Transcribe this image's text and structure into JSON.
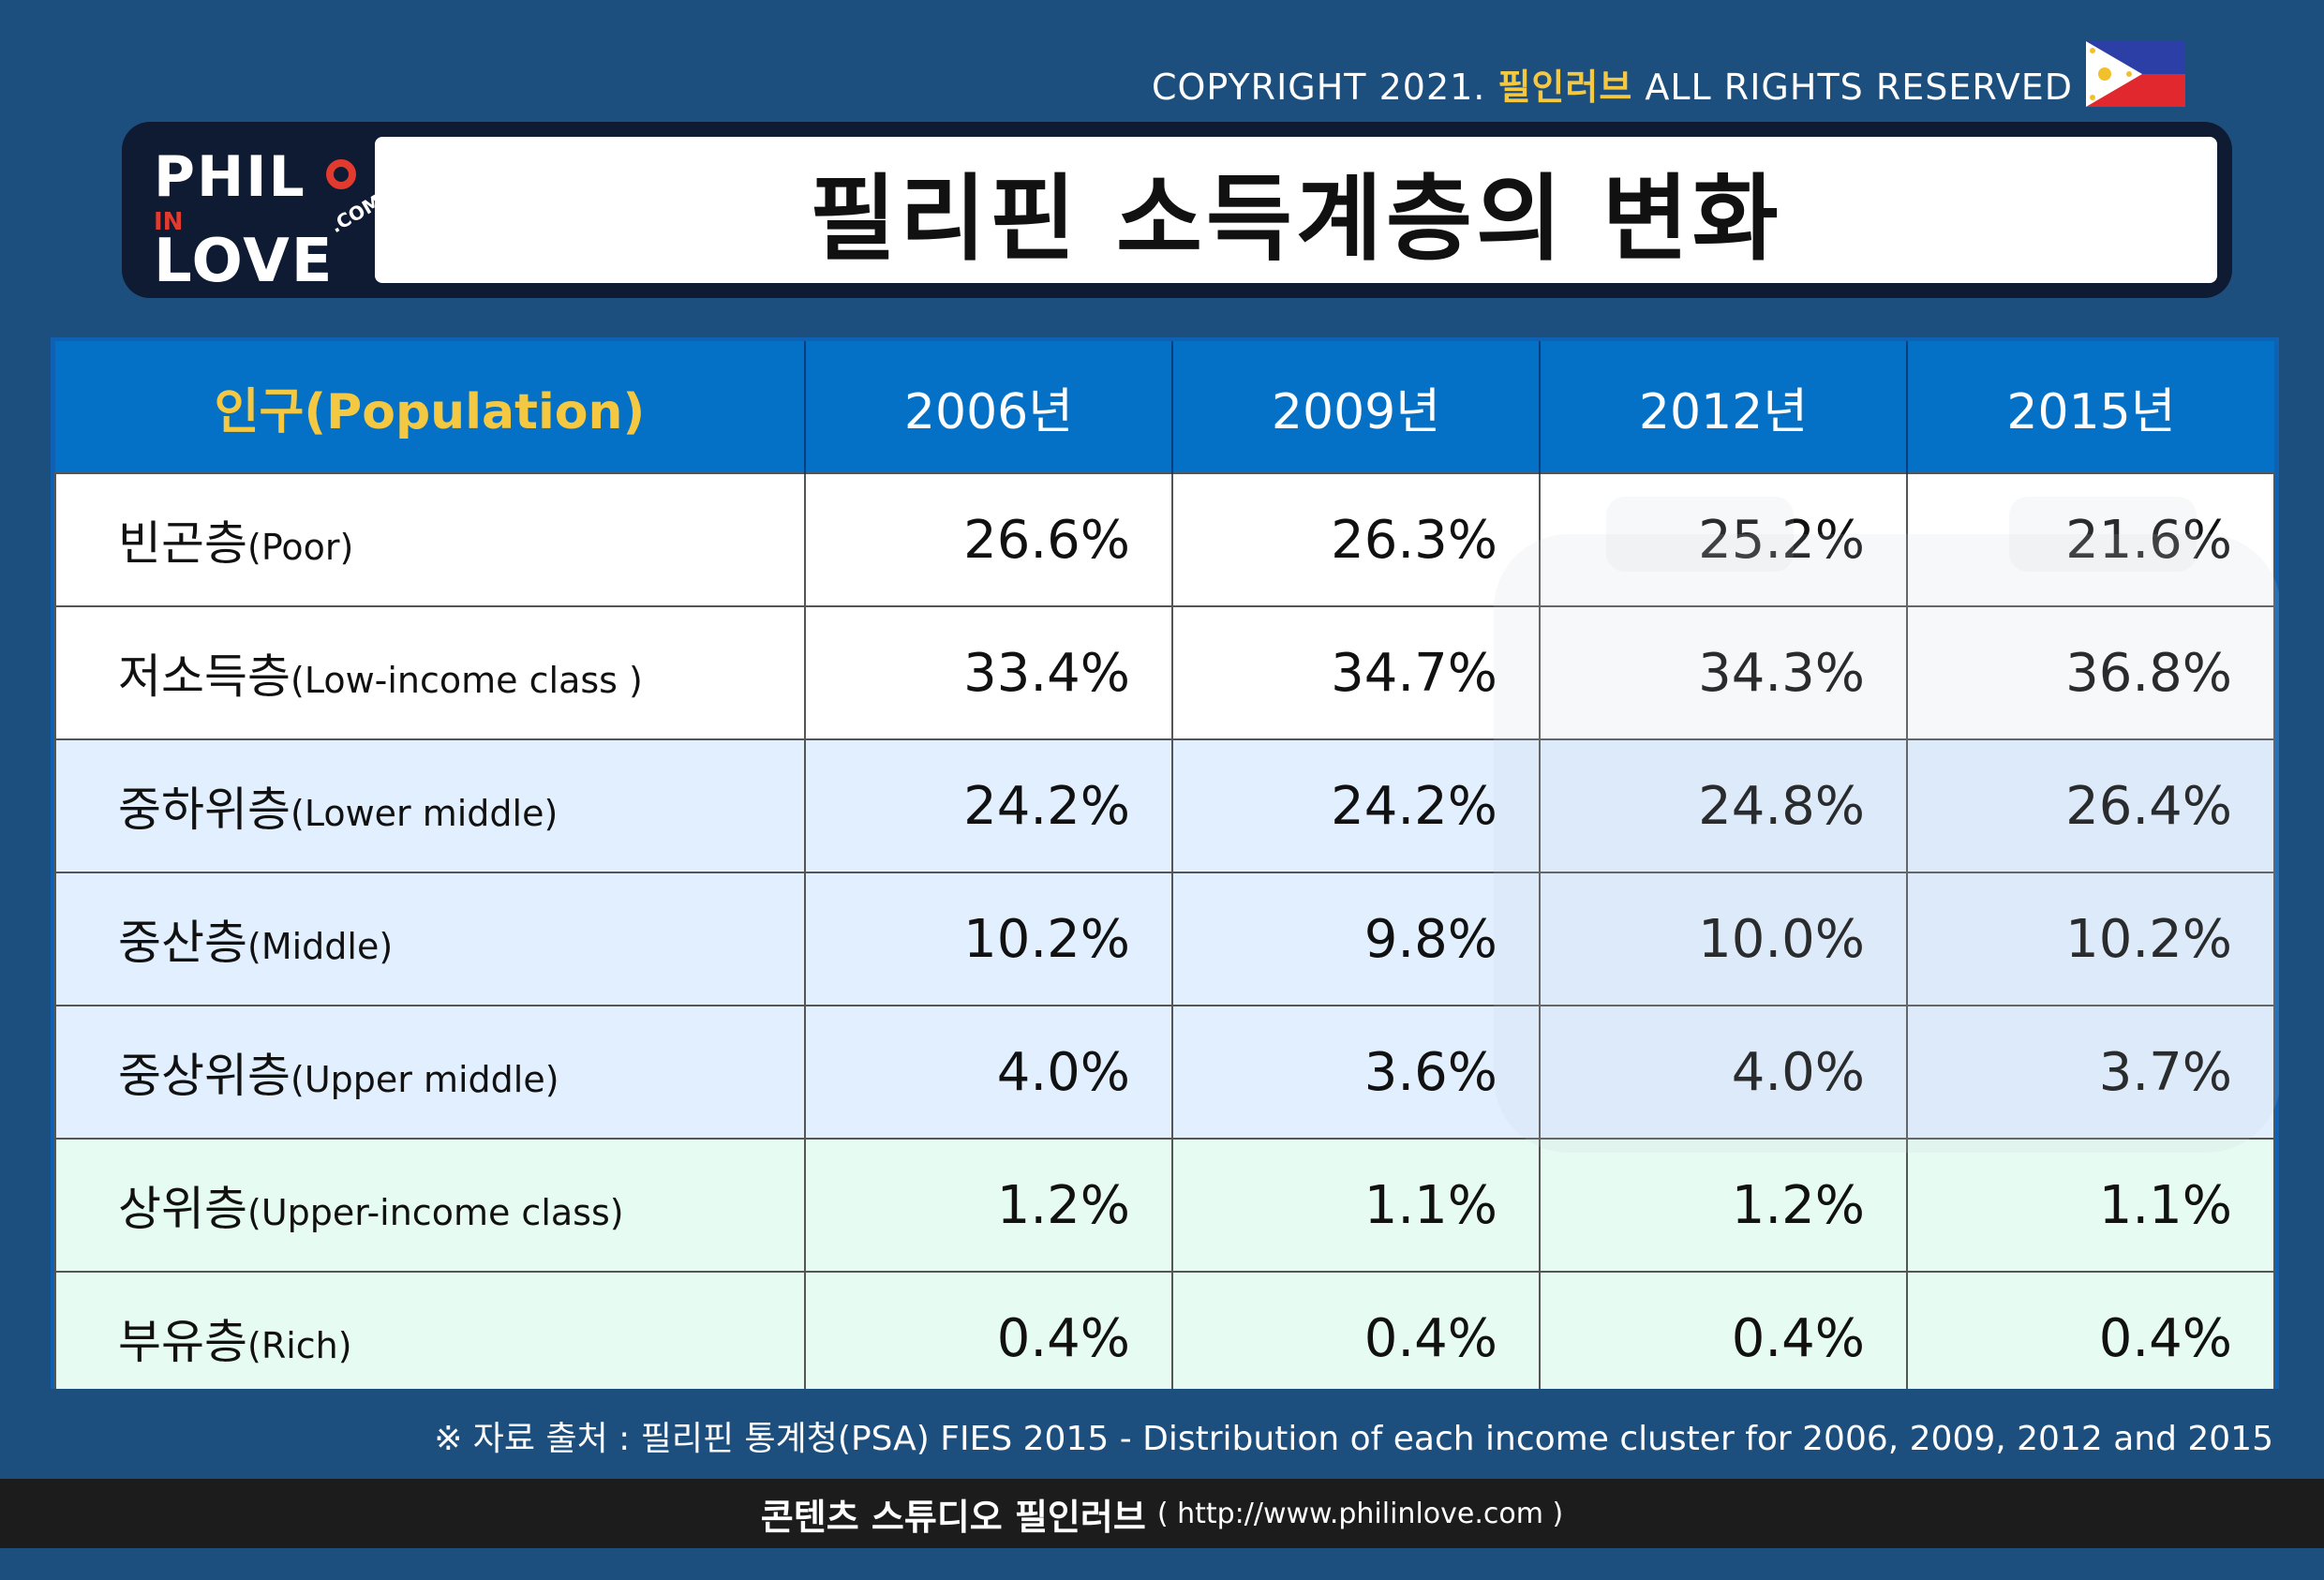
{
  "header": {
    "copyright_prefix": "COPYRIGHT 2021. ",
    "copyright_brand": "필인러브",
    "copyright_suffix": " ALL RIGHTS RESERVED",
    "flag_icon": "philippines-flag-icon",
    "title": "필리핀 소득계층의 변화",
    "logo": {
      "line1": "PHIL",
      "line2": "IN",
      "line3": "LOVE",
      "dotcom": ".COM"
    }
  },
  "chart_data": {
    "type": "table",
    "title": "필리핀 소득계층의 변화",
    "header_label": "인구(Population)",
    "columns": [
      "2006년",
      "2009년",
      "2012년",
      "2015년"
    ],
    "rows": [
      {
        "label_ko": "빈곤층",
        "label_en": "(Poor)",
        "values": [
          "26.6%",
          "26.3%",
          "25.2%",
          "21.6%"
        ]
      },
      {
        "label_ko": "저소득층",
        "label_en": "(Low-income class )",
        "values": [
          "33.4%",
          "34.7%",
          "34.3%",
          "36.8%"
        ]
      },
      {
        "label_ko": "중하위층",
        "label_en": "(Lower middle)",
        "values": [
          "24.2%",
          "24.2%",
          "24.8%",
          "26.4%"
        ]
      },
      {
        "label_ko": "중산층",
        "label_en": "(Middle)",
        "values": [
          "10.2%",
          "9.8%",
          "10.0%",
          "10.2%"
        ]
      },
      {
        "label_ko": "중상위층",
        "label_en": "(Upper middle)",
        "values": [
          "4.0%",
          "3.6%",
          "4.0%",
          "3.7%"
        ]
      },
      {
        "label_ko": "상위층",
        "label_en": "(Upper-income class)",
        "values": [
          "1.2%",
          "1.1%",
          "1.2%",
          "1.1%"
        ]
      },
      {
        "label_ko": "부유층",
        "label_en": "(Rich)",
        "values": [
          "0.4%",
          "0.4%",
          "0.4%",
          "0.4%"
        ]
      }
    ]
  },
  "source": "※ 자료 출처 : 필리핀 통계청(PSA) FIES 2015 - Distribution of each income cluster for 2006, 2009, 2012 and 2015",
  "footer": {
    "studio": "콘텐츠 스튜디오 필인러브",
    "url": "( http://www.philinlove.com )"
  },
  "colors": {
    "background": "#1d4f7e",
    "header_row": "#0571c6",
    "accent_yellow": "#f5c842",
    "row_white": "#ffffff",
    "row_blue": "#e1efff",
    "row_green": "#e6fbf2"
  }
}
